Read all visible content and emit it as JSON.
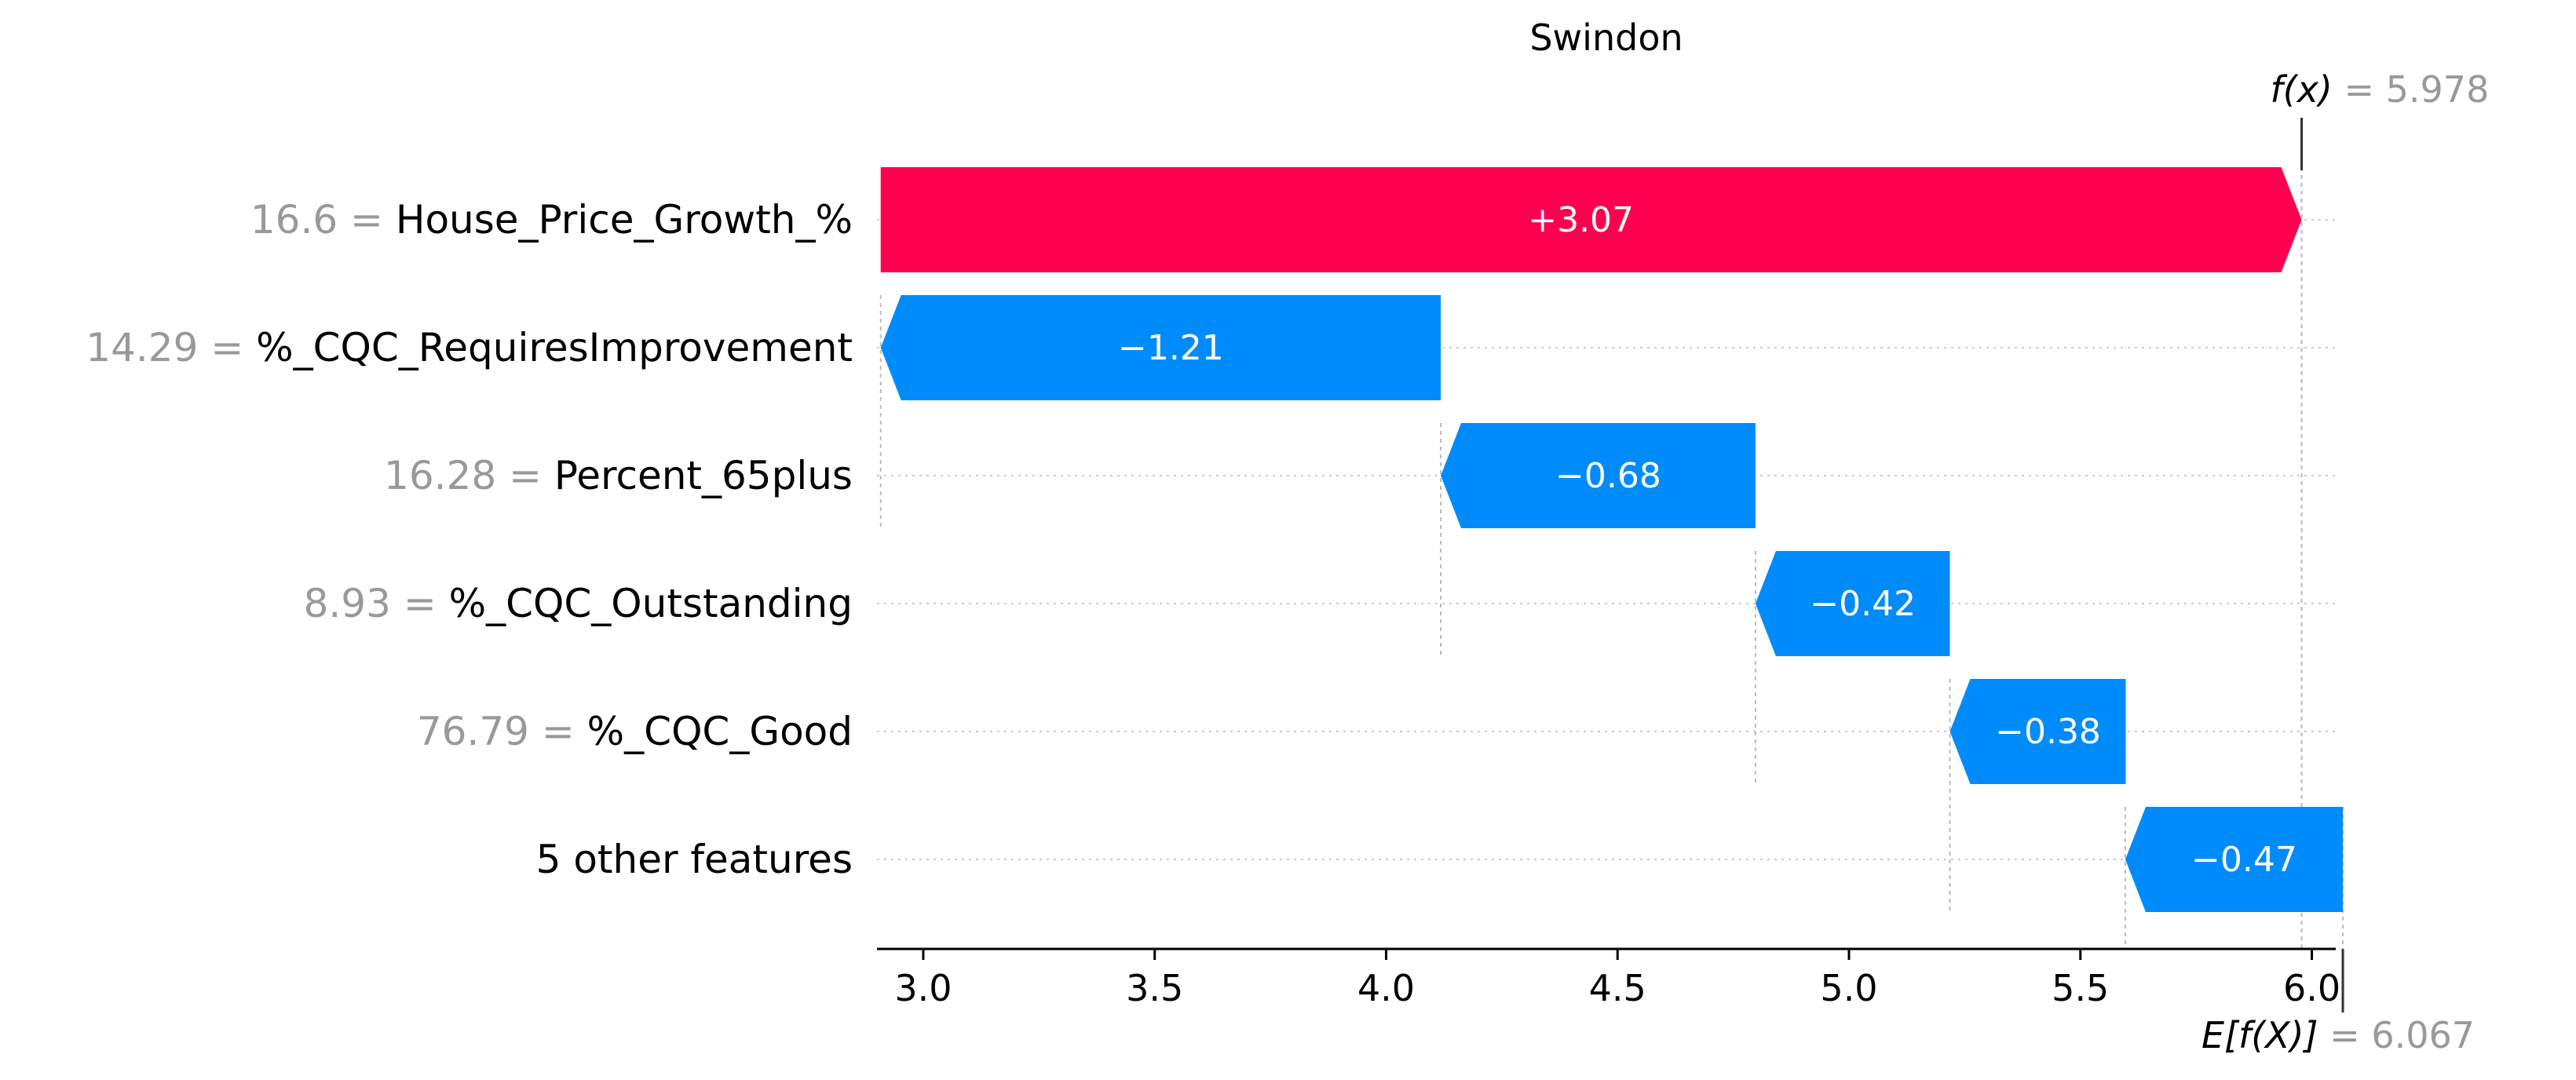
{
  "chart_data": {
    "type": "bar",
    "subtype": "shap-waterfall",
    "title": "Swindon",
    "base_value": 6.067,
    "base_value_label": "6.067",
    "output_value": 5.978,
    "output_value_label": "5.978",
    "fx_label": "f(x)",
    "efx_label": "E[f(X)]",
    "xlim": [
      2.9,
      6.05
    ],
    "xticks": [
      3.0,
      3.5,
      4.0,
      4.5,
      5.0,
      5.5,
      6.0
    ],
    "xtick_labels": [
      "3.0",
      "3.5",
      "4.0",
      "4.5",
      "5.0",
      "5.5",
      "6.0"
    ],
    "features": [
      {
        "feature": "House_Price_Growth_%",
        "value_label": "16.6",
        "shap": 3.07,
        "shap_label": "+3.07",
        "start": 2.908
      },
      {
        "feature": "%_CQC_RequiresImprovement",
        "value_label": "14.29",
        "shap": -1.21,
        "shap_label": "−1.21",
        "start": 4.118
      },
      {
        "feature": "Percent_65plus",
        "value_label": "16.28",
        "shap": -0.68,
        "shap_label": "−0.68",
        "start": 4.798
      },
      {
        "feature": "%_CQC_Outstanding",
        "value_label": "8.93",
        "shap": -0.42,
        "shap_label": "−0.42",
        "start": 5.218
      },
      {
        "feature": "%_CQC_Good",
        "value_label": "76.79",
        "shap": -0.38,
        "shap_label": "−0.38",
        "start": 5.598
      },
      {
        "feature": "5 other features",
        "value_label": "",
        "shap": -0.47,
        "shap_label": "−0.47",
        "start": 6.067
      }
    ],
    "colors": {
      "positive": "#ff0051",
      "negative": "#008bfb",
      "muted": "#999999",
      "text": "#000000",
      "grid": "#cccccc"
    }
  }
}
